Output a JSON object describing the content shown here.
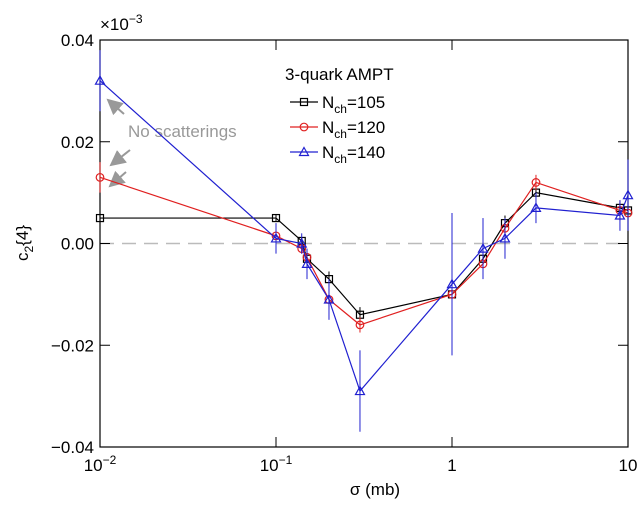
{
  "chart_data": {
    "type": "line",
    "x_label": "σ (mb)",
    "y_label": [
      "c",
      "2",
      "{4}"
    ],
    "y_multiplier": [
      "×10",
      "−3"
    ],
    "legend_title": "3-quark AMPT",
    "annotation": "No scatterings",
    "log_x": true,
    "x": [
      0.01,
      0.1,
      0.14,
      0.15,
      0.2,
      0.3,
      1,
      1.5,
      2,
      3,
      9,
      10
    ],
    "series": [
      {
        "name": [
          "N",
          "ch",
          "=105"
        ],
        "color": "#000000",
        "marker": "square",
        "values": [
          0.005,
          0.005,
          0.0005,
          -0.003,
          -0.007,
          -0.014,
          -0.01,
          -0.003,
          0.004,
          0.01,
          0.007,
          0.0065
        ],
        "errors": [
          0.0005,
          0.0007,
          0.0007,
          0.001,
          0.0015,
          0.0015,
          0.004,
          0.0015,
          0.0015,
          0.001,
          0.001,
          0.0015
        ]
      },
      {
        "name": [
          "N",
          "ch",
          "=120"
        ],
        "color": "#e02020",
        "marker": "circle",
        "values": [
          0.013,
          0.0015,
          -0.001,
          -0.0027,
          -0.011,
          -0.016,
          -0.01,
          -0.004,
          0.003,
          0.012,
          0.0065,
          0.006
        ],
        "errors": [
          0.003,
          0.001,
          0.001,
          0.0015,
          0.002,
          0.0015,
          0.005,
          0.002,
          0.0015,
          0.0015,
          0.002,
          0.002
        ]
      },
      {
        "name": [
          "N",
          "ch",
          "=140"
        ],
        "color": "#2020d0",
        "marker": "triangle",
        "values": [
          0.032,
          0.001,
          0,
          -0.004,
          -0.011,
          -0.029,
          -0.008,
          -0.001,
          0.001,
          0.007,
          0.0055,
          0.0095
        ],
        "errors": [
          0.006,
          0.003,
          0.002,
          0.003,
          0.004,
          0.008,
          0.014,
          0.006,
          0.004,
          0.003,
          0.003,
          0.007
        ]
      }
    ],
    "xlim": [
      0.01,
      10
    ],
    "xticks": [
      {
        "value": 0.01,
        "label": [
          "10",
          "−2"
        ]
      },
      {
        "value": 0.1,
        "label": [
          "10",
          "−1"
        ]
      },
      1,
      10
    ],
    "ylim": [
      -0.04,
      0.04
    ],
    "yticks": [
      {
        "value": -0.04,
        "label": "−0.04"
      },
      {
        "value": -0.02,
        "label": "−0.02"
      },
      {
        "value": 0,
        "label": "0.00"
      },
      0.02,
      0.04
    ]
  }
}
